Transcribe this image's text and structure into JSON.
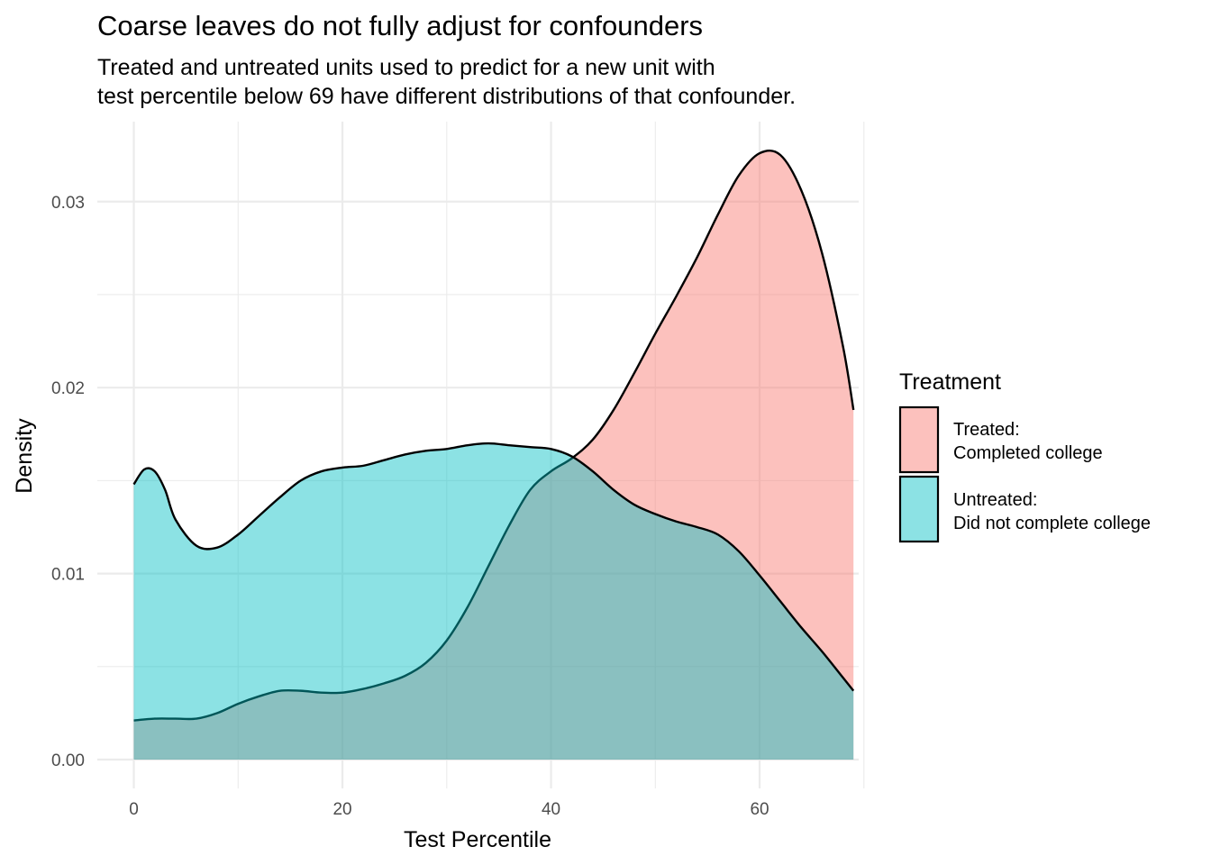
{
  "chart_data": {
    "type": "area",
    "title": "Coarse leaves do not fully adjust for confounders",
    "subtitle": [
      "Treated and untreated units used to predict for a new unit with",
      "test percentile below 69 have different distributions of that confounder."
    ],
    "xlabel": "Test Percentile",
    "ylabel": "Density",
    "xlim": [
      -3.5,
      69.5
    ],
    "ylim": [
      -0.00155,
      0.0343
    ],
    "x_ticks": [
      0,
      20,
      40,
      60
    ],
    "x_tick_labels": [
      "0",
      "20",
      "40",
      "60"
    ],
    "y_ticks": [
      0.0,
      0.01,
      0.02,
      0.03
    ],
    "y_tick_labels": [
      "0.00",
      "0.01",
      "0.02",
      "0.03"
    ],
    "grid": true,
    "legend": {
      "title": "Treatment",
      "position": "right",
      "entries": [
        [
          "Treated:",
          "Completed college"
        ],
        [
          "Untreated:",
          "Did not complete college"
        ]
      ]
    },
    "series": [
      {
        "name": "Treated: Completed college",
        "color": "#F8766D",
        "x": [
          0,
          2,
          4,
          6,
          8,
          10,
          12,
          14,
          16,
          18,
          20,
          22,
          24,
          26,
          28,
          30,
          32,
          34,
          36,
          38,
          40,
          42,
          44,
          46,
          48,
          50,
          52,
          54,
          56,
          58,
          60,
          62,
          64,
          66,
          68,
          69
        ],
        "y": [
          0.0021,
          0.0022,
          0.0022,
          0.0022,
          0.0025,
          0.003,
          0.0034,
          0.0037,
          0.0037,
          0.0036,
          0.0036,
          0.0038,
          0.0041,
          0.0045,
          0.0052,
          0.0064,
          0.0082,
          0.0104,
          0.0126,
          0.0145,
          0.0155,
          0.0162,
          0.0172,
          0.0188,
          0.0208,
          0.0229,
          0.0249,
          0.027,
          0.0293,
          0.0314,
          0.0326,
          0.0325,
          0.0306,
          0.0272,
          0.0222,
          0.0188
        ]
      },
      {
        "name": "Untreated: Did not complete college",
        "color": "#00BFC4",
        "x": [
          0,
          1,
          2,
          3,
          4,
          6,
          8,
          10,
          12,
          14,
          16,
          18,
          20,
          22,
          24,
          26,
          28,
          30,
          32,
          34,
          36,
          38,
          40,
          42,
          44,
          46,
          48,
          50,
          52,
          54,
          56,
          58,
          60,
          62,
          64,
          66,
          68,
          69
        ],
        "y": [
          0.0148,
          0.0156,
          0.0155,
          0.0145,
          0.0129,
          0.0115,
          0.0114,
          0.0121,
          0.0131,
          0.0141,
          0.015,
          0.0155,
          0.0157,
          0.0158,
          0.0161,
          0.0164,
          0.0166,
          0.0167,
          0.0169,
          0.017,
          0.0169,
          0.0168,
          0.0167,
          0.0163,
          0.0155,
          0.0145,
          0.0137,
          0.0132,
          0.0128,
          0.0125,
          0.0121,
          0.0112,
          0.0099,
          0.0085,
          0.0071,
          0.0058,
          0.0044,
          0.0037
        ]
      }
    ]
  }
}
